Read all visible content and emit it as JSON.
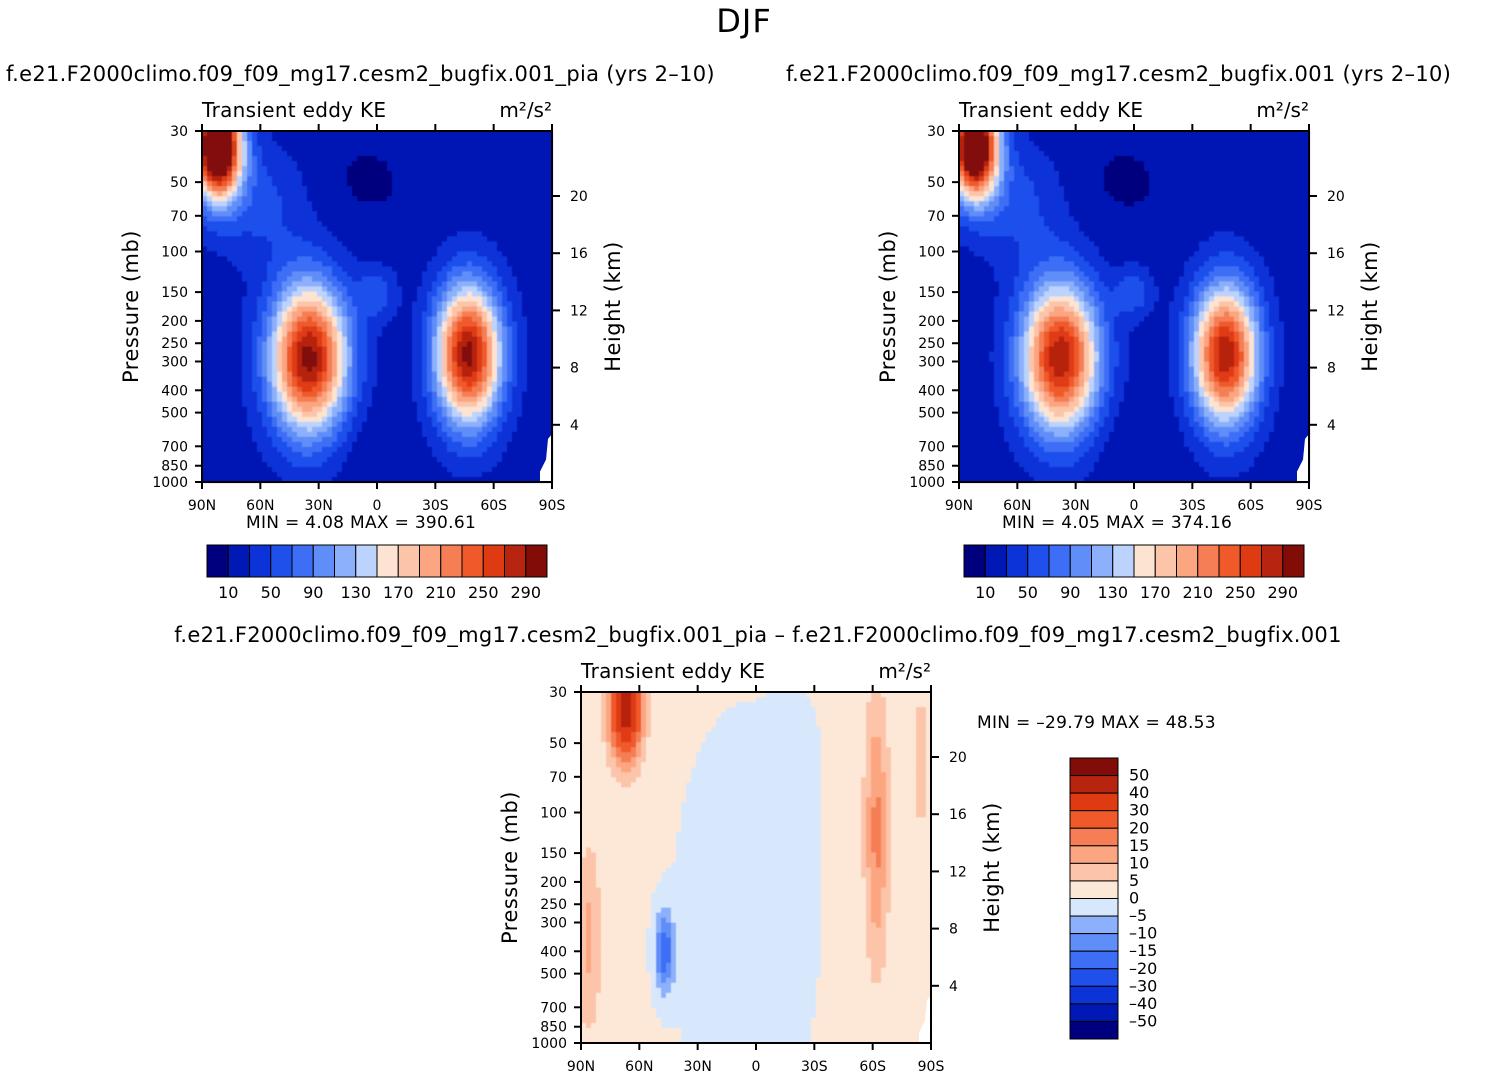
{
  "page": {
    "title": "DJF"
  },
  "panels": [
    {
      "case_title": "f.e21.F2000climo.f09_f09_mg17.cesm2_bugfix.001_pia (yrs 2–10)",
      "variable": "Transient eddy KE",
      "units": "m²/s²",
      "ylabel": "Pressure (mb)",
      "ylabel_right": "Height (km)",
      "min_label": "MIN =",
      "min_value": "4.08",
      "max_label": "MAX =",
      "max_value": "390.61"
    },
    {
      "case_title": "f.e21.F2000climo.f09_f09_mg17.cesm2_bugfix.001 (yrs 2–10)",
      "variable": "Transient eddy KE",
      "units": "m²/s²",
      "ylabel": "Pressure (mb)",
      "ylabel_right": "Height (km)",
      "min_label": "MIN =",
      "min_value": "4.05",
      "max_label": "MAX =",
      "max_value": "374.16"
    },
    {
      "case_title": "f.e21.F2000climo.f09_f09_mg17.cesm2_bugfix.001_pia – f.e21.F2000climo.f09_f09_mg17.cesm2_bugfix.001",
      "variable": "Transient eddy KE",
      "units": "m²/s²",
      "ylabel": "Pressure (mb)",
      "ylabel_right": "Height (km)",
      "min_label": "MIN =",
      "min_value": "–29.79",
      "max_label": "MAX =",
      "max_value": "48.53"
    }
  ],
  "chart_data": [
    {
      "type": "heatmap",
      "title": "Transient eddy KE",
      "units": "m²/s²",
      "x_ticks": [
        "90N",
        "60N",
        "30N",
        "0",
        "30S",
        "60S",
        "90S"
      ],
      "x_values": [
        90,
        60,
        30,
        0,
        -30,
        -60,
        -90
      ],
      "y_ticks": [
        "30",
        "50",
        "70",
        "100",
        "150",
        "200",
        "250",
        "300",
        "400",
        "500",
        "700",
        "850",
        "1000"
      ],
      "y_values": [
        30,
        50,
        70,
        100,
        150,
        200,
        250,
        300,
        400,
        500,
        700,
        850,
        1000
      ],
      "y_scale": "log",
      "y_right_ticks": [
        "20",
        "16",
        "12",
        "8",
        "4"
      ],
      "y_right_values_km": [
        20,
        16,
        12,
        8,
        4
      ],
      "colorbar_levels": [
        10,
        30,
        50,
        70,
        90,
        110,
        130,
        150,
        170,
        190,
        210,
        230,
        250,
        270,
        290
      ],
      "colorbar_tick_labels": [
        "10",
        "50",
        "90",
        "130",
        "170",
        "210",
        "250",
        "290"
      ],
      "min": 4.08,
      "max": 390.61,
      "features": [
        {
          "lat": 35,
          "p": 290,
          "value": 300
        },
        {
          "lat": -47,
          "p": 280,
          "value": 300
        },
        {
          "lat": 82,
          "p": 35,
          "value": 390
        }
      ]
    },
    {
      "type": "heatmap",
      "title": "Transient eddy KE",
      "units": "m²/s²",
      "x_ticks": [
        "90N",
        "60N",
        "30N",
        "0",
        "30S",
        "60S",
        "90S"
      ],
      "x_values": [
        90,
        60,
        30,
        0,
        -30,
        -60,
        -90
      ],
      "y_ticks": [
        "30",
        "50",
        "70",
        "100",
        "150",
        "200",
        "250",
        "300",
        "400",
        "500",
        "700",
        "850",
        "1000"
      ],
      "y_values": [
        30,
        50,
        70,
        100,
        150,
        200,
        250,
        300,
        400,
        500,
        700,
        850,
        1000
      ],
      "y_scale": "log",
      "y_right_ticks": [
        "20",
        "16",
        "12",
        "8",
        "4"
      ],
      "y_right_values_km": [
        20,
        16,
        12,
        8,
        4
      ],
      "colorbar_levels": [
        10,
        30,
        50,
        70,
        90,
        110,
        130,
        150,
        170,
        190,
        210,
        230,
        250,
        270,
        290
      ],
      "colorbar_tick_labels": [
        "10",
        "50",
        "90",
        "130",
        "170",
        "210",
        "250",
        "290"
      ],
      "min": 4.05,
      "max": 374.16,
      "features": [
        {
          "lat": 38,
          "p": 290,
          "value": 290
        },
        {
          "lat": -47,
          "p": 280,
          "value": 290
        },
        {
          "lat": 82,
          "p": 35,
          "value": 370
        }
      ]
    },
    {
      "type": "heatmap",
      "title": "Transient eddy KE",
      "units": "m²/s²",
      "x_ticks": [
        "90N",
        "60N",
        "30N",
        "0",
        "30S",
        "60S",
        "90S"
      ],
      "x_values": [
        90,
        60,
        30,
        0,
        -30,
        -60,
        -90
      ],
      "y_ticks": [
        "30",
        "50",
        "70",
        "100",
        "150",
        "200",
        "250",
        "300",
        "400",
        "500",
        "700",
        "850",
        "1000"
      ],
      "y_values": [
        30,
        50,
        70,
        100,
        150,
        200,
        250,
        300,
        400,
        500,
        700,
        850,
        1000
      ],
      "y_scale": "log",
      "y_right_ticks": [
        "20",
        "16",
        "12",
        "8",
        "4"
      ],
      "y_right_values_km": [
        20,
        16,
        12,
        8,
        4
      ],
      "colorbar_levels": [
        -50,
        -40,
        -30,
        -20,
        -15,
        -10,
        -5,
        0,
        5,
        10,
        15,
        20,
        30,
        40,
        50
      ],
      "colorbar_tick_labels": [
        "50",
        "40",
        "30",
        "20",
        "15",
        "10",
        "5",
        "0",
        "–5",
        "–10",
        "–15",
        "–20",
        "–30",
        "–40",
        "–50"
      ],
      "min": -29.79,
      "max": 48.53,
      "features": [
        {
          "lat": 67,
          "p": 35,
          "value": 45
        },
        {
          "lat": -62,
          "p": 120,
          "value": 15
        },
        {
          "lat": 47,
          "p": 400,
          "value": -20
        }
      ]
    }
  ],
  "colors": {
    "seq": [
      "#00007e",
      "#0018b4",
      "#0b33d8",
      "#1f50ec",
      "#3d6ef5",
      "#608ef8",
      "#8cb0fb",
      "#bcd3fd",
      "#fce3d2",
      "#fcc5a9",
      "#fca581",
      "#f57e55",
      "#f05a2b",
      "#df3b12",
      "#b72410",
      "#820c07"
    ],
    "div": [
      "#00007e",
      "#0018b4",
      "#0b33d8",
      "#1f50ec",
      "#3d6ef5",
      "#608ef8",
      "#8cb0fb",
      "#d8e8fc",
      "#fde8d8",
      "#fcc5a9",
      "#fca581",
      "#f57e55",
      "#f05a2b",
      "#df3b12",
      "#b72410",
      "#820c07"
    ],
    "div_order": "top-to-bottom"
  }
}
